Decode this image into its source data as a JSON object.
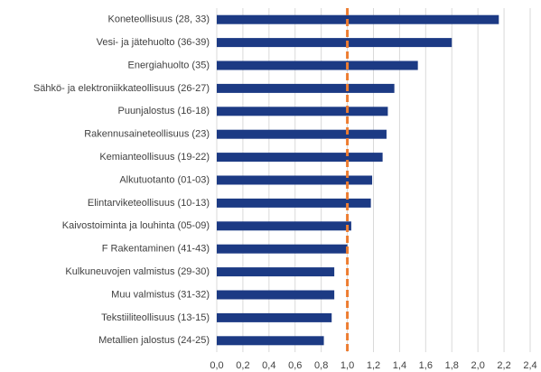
{
  "chart_data": {
    "type": "hbar",
    "categories": [
      "Koneteollisuus (28, 33)",
      "Vesi- ja jätehuolto (36-39)",
      "Energiahuolto (35)",
      "Sähkö- ja elektroniikkateollisuus (26-27)",
      "Puunjalostus (16-18)",
      "Rakennusaineteollisuus (23)",
      "Kemianteollisuus (19-22)",
      "Alkutuotanto (01-03)",
      "Elintarviketeollisuus (10-13)",
      "Kaivostoiminta ja louhinta (05-09)",
      "F Rakentaminen (41-43)",
      "Kulkuneuvojen valmistus (29-30)",
      "Muu valmistus (31-32)",
      "Tekstiiliteollisuus (13-15)",
      "Metallien jalostus (24-25)"
    ],
    "values": [
      2.16,
      1.8,
      1.54,
      1.36,
      1.31,
      1.3,
      1.27,
      1.19,
      1.18,
      1.03,
      1.0,
      0.9,
      0.9,
      0.88,
      0.82
    ],
    "color": "#1c3a84",
    "reference_line": {
      "value": 1.0,
      "color": "#ed7d31"
    },
    "xlim": [
      0,
      2.4
    ],
    "xticks": [
      {
        "value": 0,
        "label": "0,0"
      },
      {
        "value": 0.2,
        "label": "0,2"
      },
      {
        "value": 0.4,
        "label": "0,4"
      },
      {
        "value": 0.6,
        "label": "0,6"
      },
      {
        "value": 0.8,
        "label": "0,8"
      },
      {
        "value": 1.0,
        "label": "1,0"
      },
      {
        "value": 1.2,
        "label": "1,2"
      },
      {
        "value": 1.4,
        "label": "1,4"
      },
      {
        "value": 1.6,
        "label": "1,6"
      },
      {
        "value": 1.8,
        "label": "1,8"
      },
      {
        "value": 2.0,
        "label": "2,0"
      },
      {
        "value": 2.2,
        "label": "2,2"
      },
      {
        "value": 2.4,
        "label": "2,4"
      }
    ],
    "grid": true
  }
}
